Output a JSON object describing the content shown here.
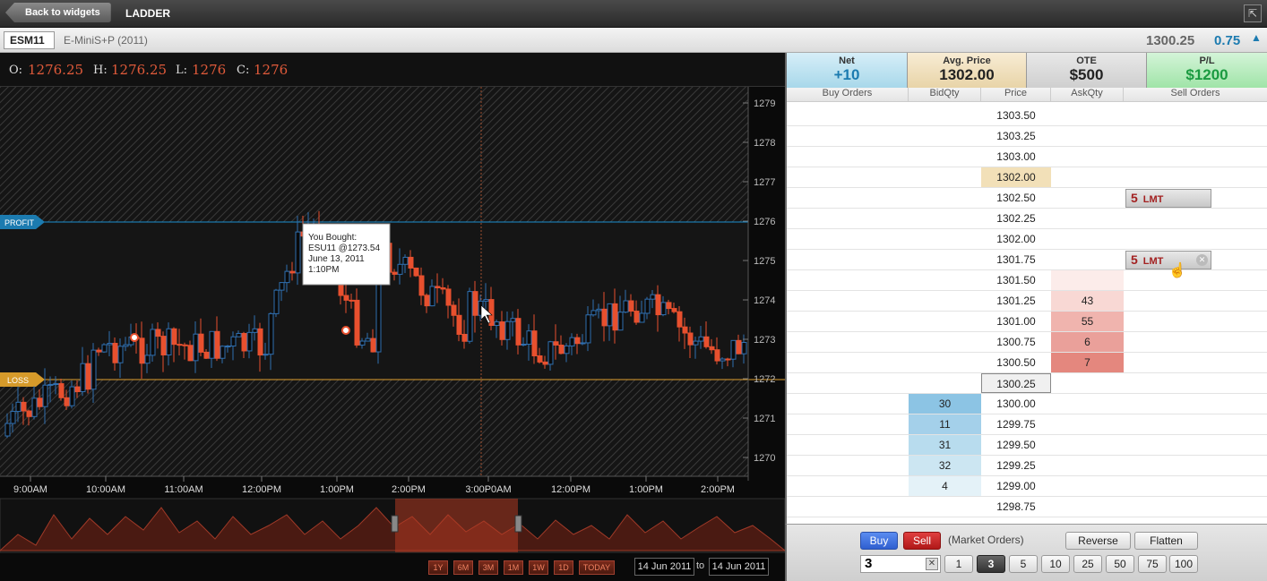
{
  "header": {
    "back_label": "Back to widgets",
    "title": "LADDER",
    "popout_icon": "popout-icon"
  },
  "symbol": {
    "code": "ESM11",
    "name": "E-MiniS+P (2011)",
    "last": "1300.25",
    "change": "0.75",
    "change_icon": "up-arrow-icon"
  },
  "ohlc": {
    "o_label": "O:",
    "o": "1276.25",
    "h_label": "H:",
    "h": "1276.25",
    "l_label": "L:",
    "l": "1276",
    "c_label": "C:",
    "c": "1276"
  },
  "chart": {
    "y_ticks": [
      "1279",
      "1278",
      "1277",
      "1276",
      "1275",
      "1274",
      "1273",
      "1272",
      "1271",
      "1270"
    ],
    "x_ticks": [
      "9:00AM",
      "10:00AM",
      "11:00AM",
      "12:00PM",
      "1:00PM",
      "2:00PM",
      "3:00P0AM",
      "12:00PM",
      "1:00PM",
      "2:00PM"
    ],
    "profit_label": "PROFIT",
    "loss_label": "LOSS",
    "tooltip": {
      "line1": "You Bought:",
      "line2": "ESU11 @1273.54",
      "line3": "June 13, 2011",
      "line4": "1:10PM"
    },
    "range_buttons": [
      "1Y",
      "6M",
      "3M",
      "1M",
      "1W",
      "1D",
      "TODAY"
    ],
    "from_date": "14 Jun 2011",
    "to_label": "to",
    "to_date": "14 Jun 2011",
    "colors": {
      "down": "#e8502e",
      "up": "#2f6fb0",
      "profit": "#1c8fd0",
      "loss": "#e0a030"
    }
  },
  "chart_data": {
    "type": "candlestick",
    "ylim": [
      1269.75,
      1279.25
    ],
    "profit_level": 1276,
    "loss_level": 1272
  },
  "stats": {
    "net_label": "Net",
    "net": "+10",
    "avg_label": "Avg. Price",
    "avg": "1302.00",
    "ote_label": "OTE",
    "ote": "$500",
    "pl_label": "P/L",
    "pl": "$1200"
  },
  "ladder": {
    "headers": [
      "Buy Orders",
      "BidQty",
      "Price",
      "AskQty",
      "Sell Orders"
    ],
    "rows": [
      {
        "price": "1303.50",
        "bid": "",
        "ask": "",
        "sell_qty": "",
        "sell_type": ""
      },
      {
        "price": "1303.25",
        "bid": "",
        "ask": "",
        "sell_qty": "",
        "sell_type": ""
      },
      {
        "price": "1303.00",
        "bid": "",
        "ask": "",
        "sell_qty": "",
        "sell_type": ""
      },
      {
        "price": "1302.00",
        "bid": "",
        "ask": "",
        "sell_qty": "",
        "sell_type": "",
        "avg": true
      },
      {
        "price": "1302.50",
        "bid": "",
        "ask": "",
        "sell_qty": "5",
        "sell_type": "LMT"
      },
      {
        "price": "1302.25",
        "bid": "",
        "ask": "",
        "sell_qty": "",
        "sell_type": ""
      },
      {
        "price": "1302.00",
        "bid": "",
        "ask": "",
        "sell_qty": "",
        "sell_type": ""
      },
      {
        "price": "1301.75",
        "bid": "",
        "ask": "",
        "sell_qty": "5",
        "sell_type": "LMT",
        "close": true
      },
      {
        "price": "1301.50",
        "bid": "",
        "ask": "",
        "sell_qty": "",
        "sell_type": ""
      },
      {
        "price": "1301.25",
        "bid": "",
        "ask": "43",
        "sell_qty": "",
        "sell_type": ""
      },
      {
        "price": "1301.00",
        "bid": "",
        "ask": "55",
        "sell_qty": "",
        "sell_type": ""
      },
      {
        "price": "1300.75",
        "bid": "",
        "ask": "6",
        "sell_qty": "",
        "sell_type": ""
      },
      {
        "price": "1300.50",
        "bid": "",
        "ask": "7",
        "sell_qty": "",
        "sell_type": ""
      },
      {
        "price": "1300.25",
        "bid": "",
        "ask": "",
        "sell_qty": "",
        "sell_type": "",
        "last": true
      },
      {
        "price": "1300.00",
        "bid": "30",
        "ask": "",
        "sell_qty": "",
        "sell_type": ""
      },
      {
        "price": "1299.75",
        "bid": "11",
        "ask": "",
        "sell_qty": "",
        "sell_type": ""
      },
      {
        "price": "1299.50",
        "bid": "31",
        "ask": "",
        "sell_qty": "",
        "sell_type": ""
      },
      {
        "price": "1299.25",
        "bid": "32",
        "ask": "",
        "sell_qty": "",
        "sell_type": ""
      },
      {
        "price": "1299.00",
        "bid": "4",
        "ask": "",
        "sell_qty": "",
        "sell_type": ""
      },
      {
        "price": "1298.75",
        "bid": "",
        "ask": "",
        "sell_qty": "",
        "sell_type": ""
      }
    ]
  },
  "order_entry": {
    "buy_label": "Buy",
    "sell_label": "Sell",
    "market_label": "(Market Orders)",
    "reverse_label": "Reverse",
    "flatten_label": "Flatten",
    "qty_value": "3",
    "clear_icon": "close-icon",
    "qty_presets": [
      "1",
      "3",
      "5",
      "10",
      "25",
      "50",
      "75",
      "100"
    ],
    "selected_qty": "3"
  }
}
